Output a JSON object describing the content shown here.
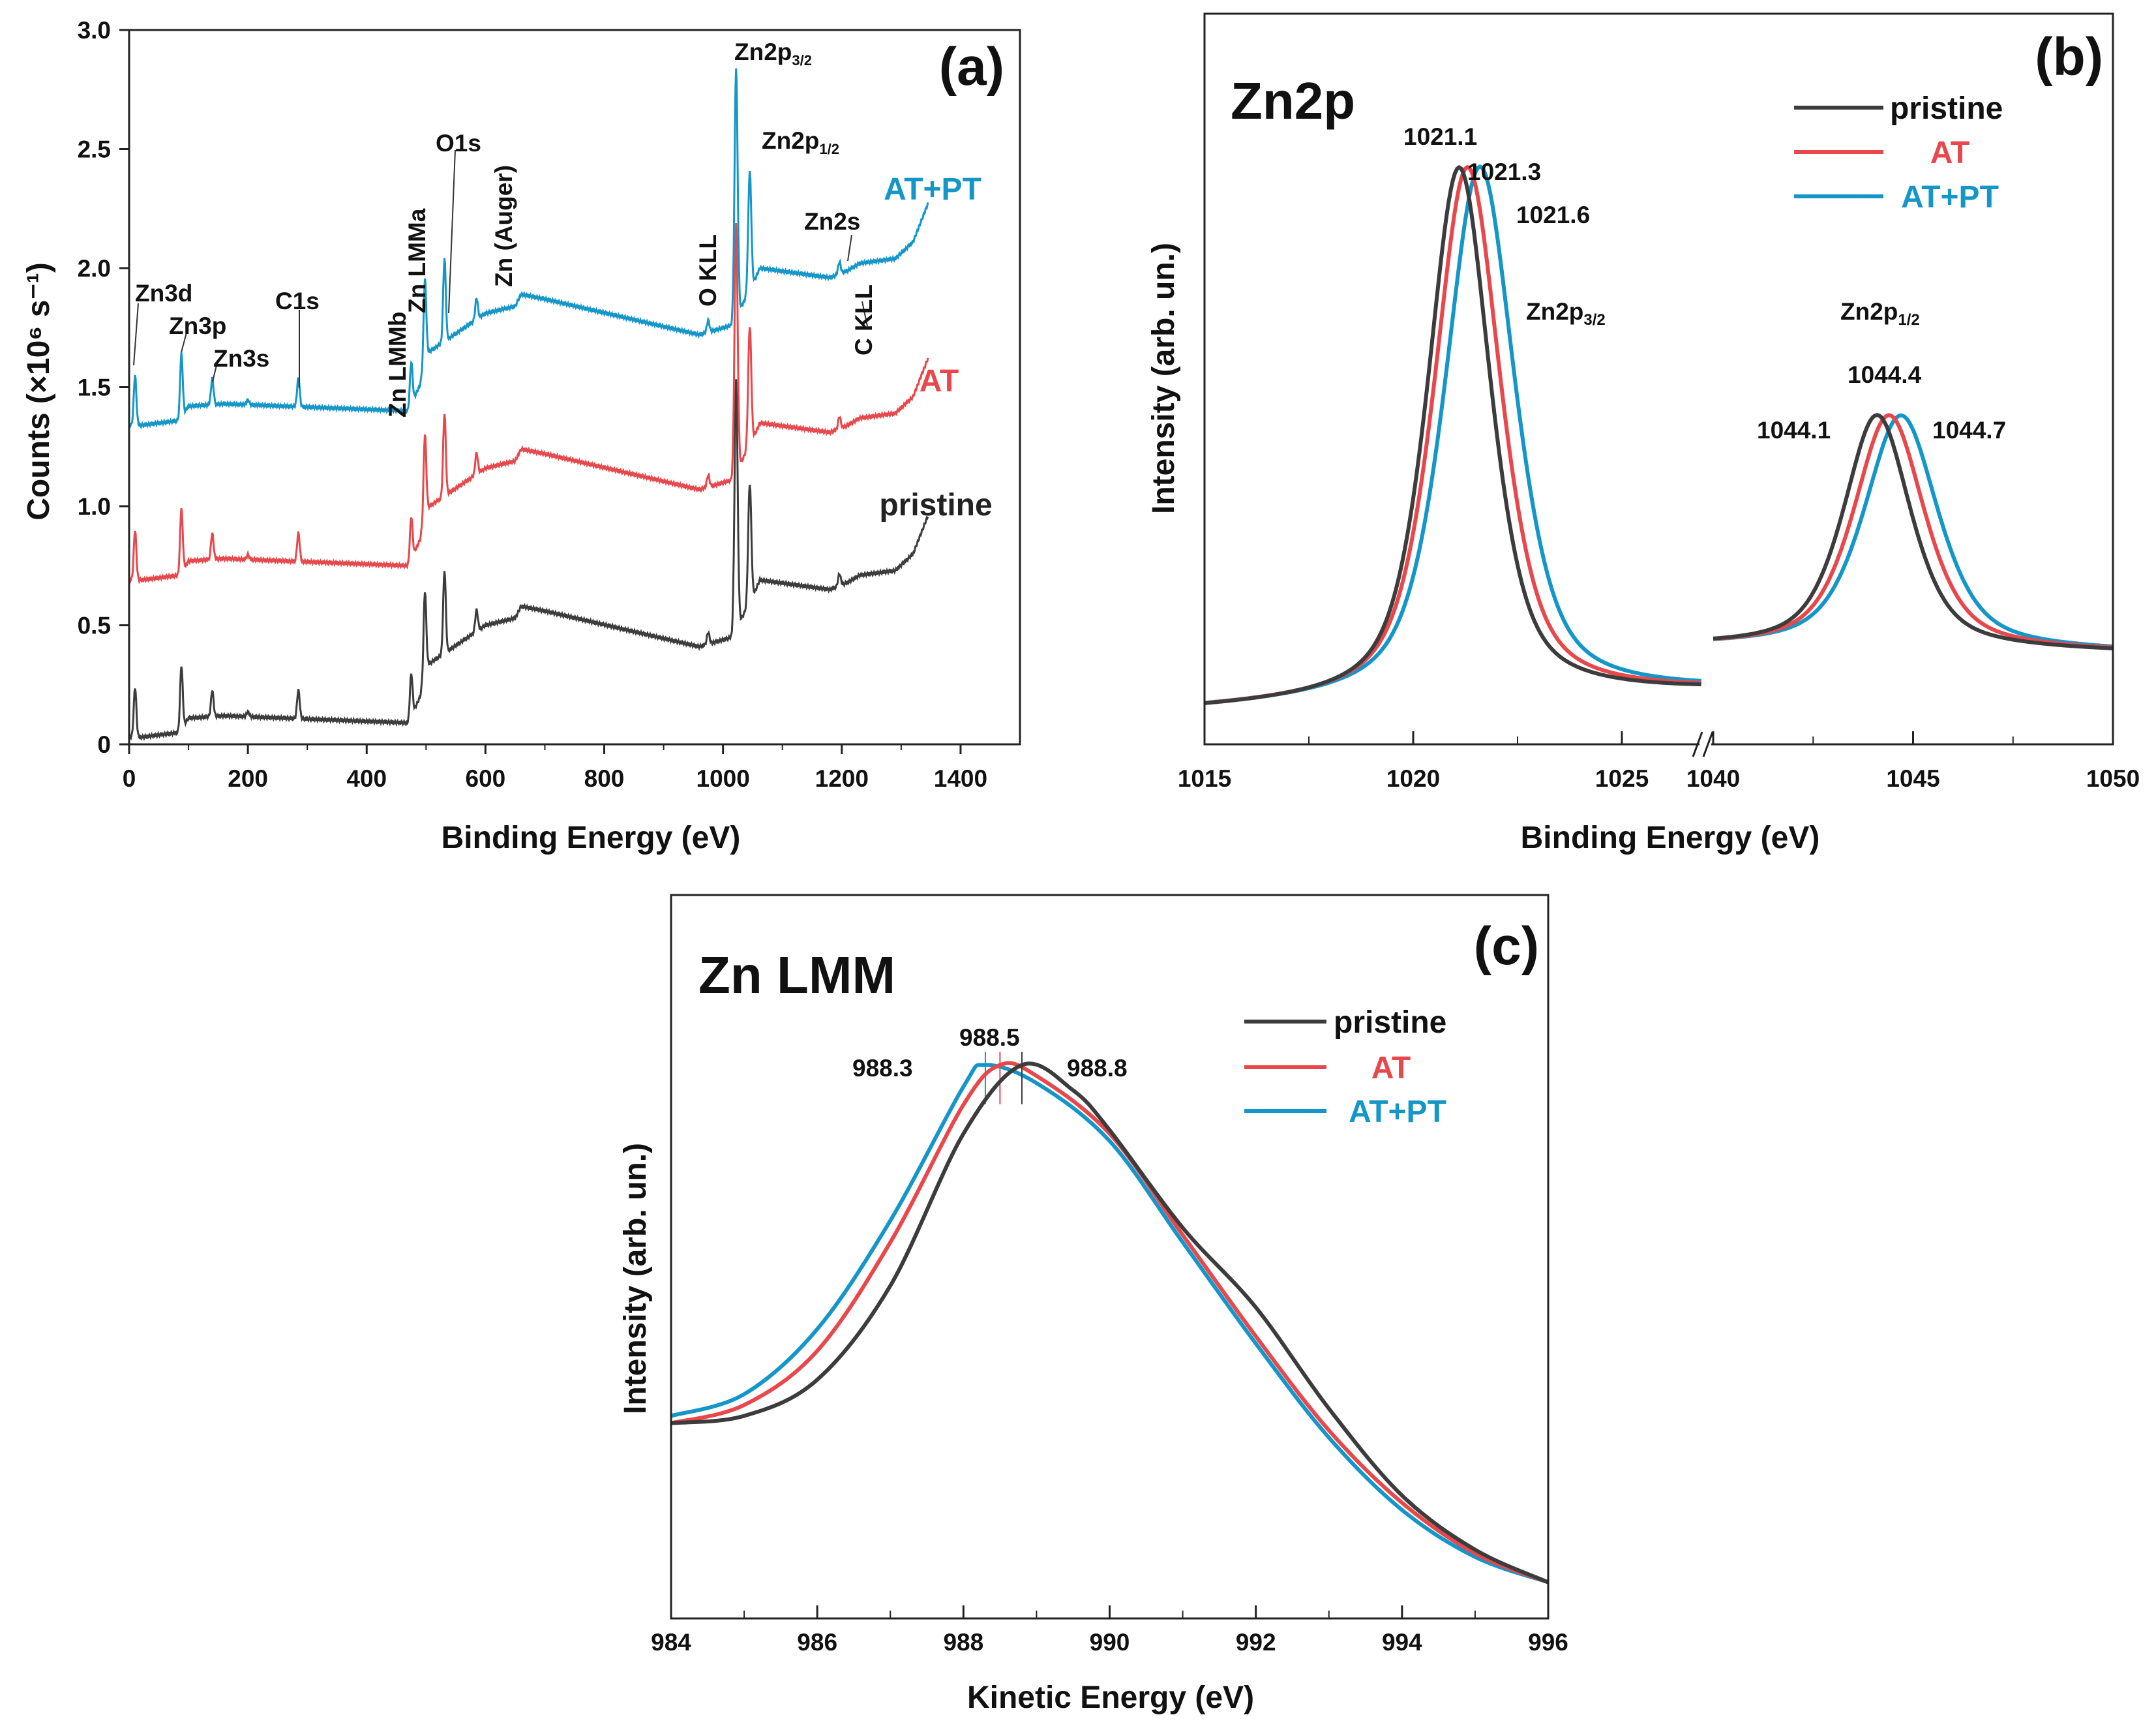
{
  "colors": {
    "pristine": "#3c3c3c",
    "AT": "#e8474b",
    "AT+PT": "#1496c8"
  },
  "chart_data": [
    {
      "panel": "(a)",
      "type": "line",
      "xlabel": "Binding Energy (eV)",
      "ylabel": "Counts (×10⁶ s⁻¹)",
      "xlim": [
        0,
        1500
      ],
      "ylim": [
        0,
        3.0
      ],
      "xticks": [
        "0",
        "200",
        "400",
        "600",
        "800",
        "1000",
        "1200",
        "1400"
      ],
      "yticks": [
        "0",
        "0.5",
        "1.0",
        "1.5",
        "2.0",
        "2.5",
        "3.0"
      ],
      "baseline": [
        [
          0,
          0.03
        ],
        [
          20,
          0.03
        ],
        [
          85,
          0.05
        ],
        [
          100,
          0.11
        ],
        [
          160,
          0.12
        ],
        [
          470,
          0.09
        ],
        [
          490,
          0.2
        ],
        [
          500,
          0.33
        ],
        [
          600,
          0.5
        ],
        [
          650,
          0.53
        ],
        [
          660,
          0.58
        ],
        [
          700,
          0.56
        ],
        [
          960,
          0.41
        ],
        [
          1015,
          0.45
        ],
        [
          1050,
          0.62
        ],
        [
          1062,
          0.69
        ],
        [
          1180,
          0.65
        ],
        [
          1210,
          0.68
        ],
        [
          1230,
          0.71
        ],
        [
          1290,
          0.73
        ],
        [
          1320,
          0.8
        ],
        [
          1345,
          0.96
        ]
      ],
      "peaks": [
        [
          10,
          0.21
        ],
        [
          88,
          0.27
        ],
        [
          140,
          0.11
        ],
        [
          200,
          0.02
        ],
        [
          285,
          0.12
        ],
        [
          475,
          0.18
        ],
        [
          498,
          0.34
        ],
        [
          531,
          0.35
        ],
        [
          585,
          0.09
        ],
        [
          975,
          0.05
        ],
        [
          1022,
          1.05
        ],
        [
          1045,
          0.5
        ],
        [
          1196,
          0.05
        ]
      ],
      "series": [
        {
          "name": "pristine",
          "offset": 0.0
        },
        {
          "name": "AT",
          "offset": 0.66
        },
        {
          "name": "AT+PT",
          "offset": 1.31
        }
      ],
      "series_labels": {
        "pristine": "pristine",
        "AT": "AT",
        "AT+PT": "AT+PT"
      },
      "annotations": {
        "zn3d": "Zn3d",
        "zn3p": "Zn3p",
        "zn3s": "Zn3s",
        "c1s": "C1s",
        "zn_lmmb": "Zn LMMb",
        "zn_lmma": "Zn LMMa",
        "o1s": "O1s",
        "zn_auger": "Zn (Auger)",
        "o_kll": "O KLL",
        "zn2p32": "Zn2p",
        "zn2p32_sub": "3/2",
        "zn2p12": "Zn2p",
        "zn2p12_sub": "1/2",
        "zn2s": "Zn2s",
        "c_kll": "C KLL"
      }
    },
    {
      "panel": "(b)",
      "type": "line",
      "title": "Zn2p",
      "xlabel": "Binding Energy (eV)",
      "ylabel": "Intensity (arb. un.)",
      "xlim_left": [
        1015,
        1027
      ],
      "xlim_right": [
        1040,
        1050
      ],
      "xticks": [
        "1015",
        "1020",
        "1025",
        "1040",
        "1045",
        "1050"
      ],
      "ylim": [
        0,
        1
      ],
      "series": [
        {
          "name": "pristine",
          "peak_3_2": 1021.1,
          "peak_1_2": 1044.1,
          "fwhm": 1.8
        },
        {
          "name": "AT",
          "peak_3_2": 1021.3,
          "peak_1_2": 1044.4,
          "fwhm": 1.9
        },
        {
          "name": "AT+PT",
          "peak_3_2": 1021.6,
          "peak_1_2": 1044.7,
          "fwhm": 2.0
        }
      ],
      "peak_labels": {
        "p32_pristine": "1021.1",
        "p32_AT": "1021.3",
        "p32_ATPT": "1021.6",
        "p12_pristine": "1044.1",
        "p12_AT": "1044.4",
        "p12_ATPT": "1044.7"
      },
      "annotations": {
        "zn2p32": "Zn2p",
        "zn2p32_sub": "3/2",
        "zn2p12": "Zn2p",
        "zn2p12_sub": "1/2"
      },
      "legend": [
        "pristine",
        "AT",
        "AT+PT"
      ],
      "legend_position": "top-right"
    },
    {
      "panel": "(c)",
      "type": "line",
      "title": "Zn LMM",
      "xlabel": "Kinetic Energy (eV)",
      "ylabel": "Intensity (arb. un.)",
      "xlim": [
        984,
        996
      ],
      "ylim": [
        0,
        1
      ],
      "xticks": [
        "984",
        "986",
        "988",
        "990",
        "992",
        "994",
        "996"
      ],
      "series": [
        {
          "name": "pristine",
          "peak": 988.8,
          "points": [
            [
              984,
              0.27
            ],
            [
              985,
              0.28
            ],
            [
              986,
              0.33
            ],
            [
              987,
              0.46
            ],
            [
              988,
              0.67
            ],
            [
              988.8,
              0.765
            ],
            [
              989.5,
              0.73
            ],
            [
              990,
              0.675
            ],
            [
              991,
              0.54
            ],
            [
              992,
              0.43
            ],
            [
              993,
              0.29
            ],
            [
              994,
              0.17
            ],
            [
              995,
              0.095
            ],
            [
              996,
              0.05
            ]
          ]
        },
        {
          "name": "AT",
          "peak": 988.5,
          "points": [
            [
              984,
              0.27
            ],
            [
              985,
              0.295
            ],
            [
              986,
              0.37
            ],
            [
              987,
              0.52
            ],
            [
              988,
              0.71
            ],
            [
              988.5,
              0.765
            ],
            [
              989,
              0.75
            ],
            [
              990,
              0.67
            ],
            [
              991,
              0.53
            ],
            [
              992,
              0.39
            ],
            [
              993,
              0.26
            ],
            [
              994,
              0.16
            ],
            [
              995,
              0.09
            ],
            [
              996,
              0.05
            ]
          ]
        },
        {
          "name": "AT+PT",
          "peak": 988.3,
          "points": [
            [
              984,
              0.28
            ],
            [
              985,
              0.31
            ],
            [
              986,
              0.4
            ],
            [
              987,
              0.55
            ],
            [
              988,
              0.735
            ],
            [
              988.3,
              0.765
            ],
            [
              989,
              0.74
            ],
            [
              990,
              0.66
            ],
            [
              991,
              0.52
            ],
            [
              992,
              0.38
            ],
            [
              993,
              0.25
            ],
            [
              994,
              0.15
            ],
            [
              995,
              0.085
            ],
            [
              996,
              0.05
            ]
          ]
        }
      ],
      "peak_labels": {
        "pristine": "988.8",
        "AT": "988.5",
        "ATPT": "988.3"
      },
      "legend": [
        "pristine",
        "AT",
        "AT+PT"
      ],
      "legend_position": "top-right"
    }
  ],
  "panel_labels": {
    "a": "(a)",
    "b": "(b)",
    "c": "(c)"
  }
}
